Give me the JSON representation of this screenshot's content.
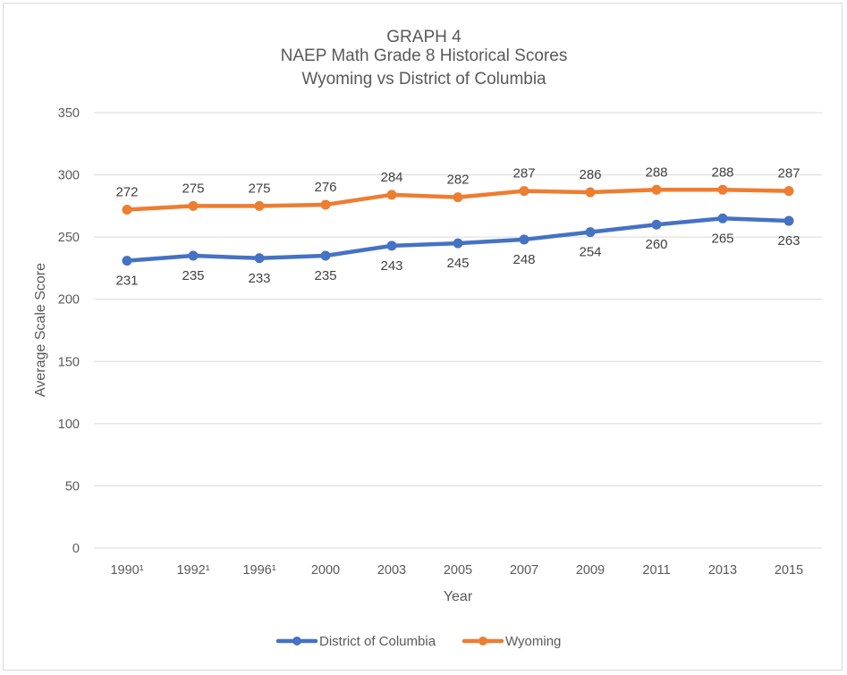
{
  "chart_data": {
    "type": "line",
    "title_lines": [
      "GRAPH 4",
      "NAEP Math Grade 8 Historical Scores",
      "Wyoming vs District of Columbia"
    ],
    "categories": [
      "1990¹",
      "1992¹",
      "1996¹",
      "2000",
      "2003",
      "2005",
      "2007",
      "2009",
      "2011",
      "2013",
      "2015"
    ],
    "series": [
      {
        "name": "District of Columbia",
        "color": "#4472c4",
        "values": [
          231,
          235,
          233,
          235,
          243,
          245,
          248,
          254,
          260,
          265,
          263
        ],
        "label_position": "below"
      },
      {
        "name": "Wyoming",
        "color": "#ed7d31",
        "values": [
          272,
          275,
          275,
          276,
          284,
          282,
          287,
          286,
          288,
          288,
          287
        ],
        "label_position": "above"
      }
    ],
    "xlabel": "Year",
    "ylabel": "Average Scale Score",
    "ylim": [
      0,
      350
    ],
    "yticks": [
      0,
      50,
      100,
      150,
      200,
      250,
      300,
      350
    ],
    "grid": true,
    "legend": "bottom"
  }
}
